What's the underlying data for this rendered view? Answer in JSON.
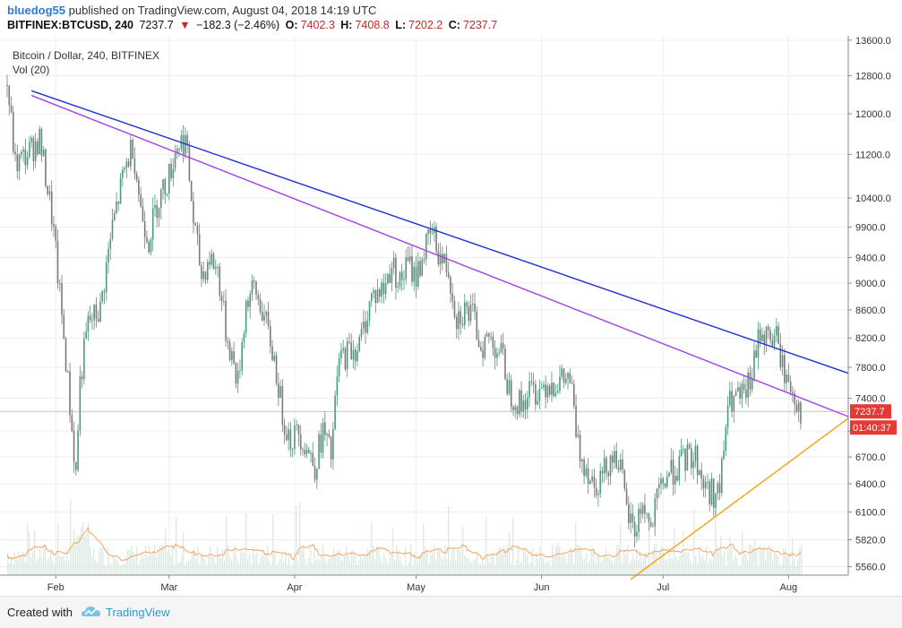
{
  "header": {
    "author": "bluedog55",
    "published_text": "published on TradingView.com, August 04, 2018 14:19 UTC",
    "symbol": "BITFINEX:BTCUSD, 240",
    "last": "7237.7",
    "change_arrow": "▼",
    "change": "−182.3 (−2.46%)",
    "o_label": "O:",
    "o_value": "7402.3",
    "h_label": "H:",
    "h_value": "7408.8",
    "l_label": "L:",
    "l_value": "7202.2",
    "c_label": "C:",
    "c_value": "7237.7"
  },
  "legend": {
    "title": "Bitcoin / Dollar, 240, BITFINEX",
    "vol": "Vol (20)"
  },
  "price_badge": "7237.7",
  "countdown_badge": "01:40:37",
  "footer": {
    "created_with": "Created with",
    "brand": "TradingView"
  },
  "colors": {
    "up": "#4c9a7e",
    "down": "#7a7a7a",
    "blue_trend": "#1f2fd6",
    "purple_trend": "#a53ee6",
    "orange_trend": "#f5a00f",
    "price_line": "#e57373",
    "badge_red": "#e53935",
    "vol_ma": "#f4a460"
  },
  "chart_data": {
    "type": "candlestick",
    "title": "Bitcoin / Dollar, 240, BITFINEX",
    "x_ticks": [
      "Feb",
      "Mar",
      "Apr",
      "May",
      "Jun",
      "Jul",
      "Aug"
    ],
    "y_ticks": [
      13600,
      12800,
      12000,
      11200,
      10400,
      9900,
      9400,
      9000,
      8600,
      8200,
      7800,
      7400,
      7000,
      6700,
      6400,
      6100,
      5820,
      5560
    ],
    "y_tick_labels": [
      "13600.0",
      "12800.0",
      "12000.0",
      "11200.0",
      "10400.0",
      "9900.0",
      "9400.0",
      "9000.0",
      "8600.0",
      "8200.0",
      "7800.0",
      "7400.0",
      "7000.0",
      "6700.0",
      "6400.0",
      "6100.0",
      "5820.0",
      "5560.0"
    ],
    "y_scale": "log",
    "last_price": 7237.7,
    "close_path": [
      [
        "2018-01-20",
        12600
      ],
      [
        "2018-01-22",
        11000
      ],
      [
        "2018-01-25",
        11200
      ],
      [
        "2018-01-28",
        11500
      ],
      [
        "2018-01-31",
        10100
      ],
      [
        "2018-02-02",
        8800
      ],
      [
        "2018-02-05",
        7000
      ],
      [
        "2018-02-06",
        6500
      ],
      [
        "2018-02-07",
        7600
      ],
      [
        "2018-02-09",
        8400
      ],
      [
        "2018-02-12",
        8600
      ],
      [
        "2018-02-15",
        9900
      ],
      [
        "2018-02-18",
        10900
      ],
      [
        "2018-02-20",
        11400
      ],
      [
        "2018-02-22",
        10200
      ],
      [
        "2018-02-24",
        9700
      ],
      [
        "2018-02-26",
        10300
      ],
      [
        "2018-03-01",
        10800
      ],
      [
        "2018-03-03",
        11400
      ],
      [
        "2018-03-05",
        11500
      ],
      [
        "2018-03-07",
        10000
      ],
      [
        "2018-03-09",
        9100
      ],
      [
        "2018-03-11",
        9400
      ],
      [
        "2018-03-13",
        9200
      ],
      [
        "2018-03-15",
        8300
      ],
      [
        "2018-03-18",
        7600
      ],
      [
        "2018-03-20",
        8700
      ],
      [
        "2018-03-22",
        8900
      ],
      [
        "2018-03-24",
        8600
      ],
      [
        "2018-03-27",
        7900
      ],
      [
        "2018-03-29",
        7200
      ],
      [
        "2018-03-31",
        6900
      ],
      [
        "2018-04-02",
        7000
      ],
      [
        "2018-04-04",
        6800
      ],
      [
        "2018-04-06",
        6600
      ],
      [
        "2018-04-08",
        7000
      ],
      [
        "2018-04-10",
        6700
      ],
      [
        "2018-04-12",
        7900
      ],
      [
        "2018-04-14",
        8000
      ],
      [
        "2018-04-17",
        8100
      ],
      [
        "2018-04-20",
        8800
      ],
      [
        "2018-04-23",
        8900
      ],
      [
        "2018-04-25",
        9300
      ],
      [
        "2018-04-27",
        9000
      ],
      [
        "2018-04-29",
        9300
      ],
      [
        "2018-05-01",
        9100
      ],
      [
        "2018-05-03",
        9500
      ],
      [
        "2018-05-05",
        9800
      ],
      [
        "2018-05-07",
        9400
      ],
      [
        "2018-05-09",
        9200
      ],
      [
        "2018-05-11",
        8500
      ],
      [
        "2018-05-13",
        8600
      ],
      [
        "2018-05-15",
        8500
      ],
      [
        "2018-05-17",
        8100
      ],
      [
        "2018-05-19",
        8200
      ],
      [
        "2018-05-22",
        8000
      ],
      [
        "2018-05-24",
        7500
      ],
      [
        "2018-05-27",
        7300
      ],
      [
        "2018-05-29",
        7500
      ],
      [
        "2018-05-31",
        7500
      ],
      [
        "2018-06-02",
        7600
      ],
      [
        "2018-06-05",
        7600
      ],
      [
        "2018-06-08",
        7650
      ],
      [
        "2018-06-10",
        6800
      ],
      [
        "2018-06-12",
        6600
      ],
      [
        "2018-06-14",
        6400
      ],
      [
        "2018-06-16",
        6500
      ],
      [
        "2018-06-18",
        6700
      ],
      [
        "2018-06-20",
        6700
      ],
      [
        "2018-06-22",
        6100
      ],
      [
        "2018-06-24",
        5900
      ],
      [
        "2018-06-26",
        6200
      ],
      [
        "2018-06-28",
        5900
      ],
      [
        "2018-06-30",
        6300
      ],
      [
        "2018-07-02",
        6500
      ],
      [
        "2018-07-05",
        6600
      ],
      [
        "2018-07-07",
        6700
      ],
      [
        "2018-07-09",
        6700
      ],
      [
        "2018-07-11",
        6400
      ],
      [
        "2018-07-13",
        6300
      ],
      [
        "2018-07-15",
        6300
      ],
      [
        "2018-07-17",
        7300
      ],
      [
        "2018-07-19",
        7400
      ],
      [
        "2018-07-21",
        7400
      ],
      [
        "2018-07-23",
        7700
      ],
      [
        "2018-07-25",
        8300
      ],
      [
        "2018-07-27",
        8200
      ],
      [
        "2018-07-29",
        8200
      ],
      [
        "2018-07-31",
        7700
      ],
      [
        "2018-08-02",
        7500
      ],
      [
        "2018-08-04",
        7237.7
      ]
    ],
    "trendlines": [
      {
        "color": "blue",
        "from": [
          "2018-01-26",
          12480
        ],
        "to": [
          "2018-08-17",
          7700
        ]
      },
      {
        "color": "purple",
        "from": [
          "2018-01-26",
          12380
        ],
        "to": [
          "2018-08-17",
          7150
        ]
      },
      {
        "color": "orange",
        "from": [
          "2018-06-23",
          5440
        ],
        "to": [
          "2018-08-17",
          7200
        ]
      }
    ],
    "volume_ma": "Vol (20)"
  }
}
